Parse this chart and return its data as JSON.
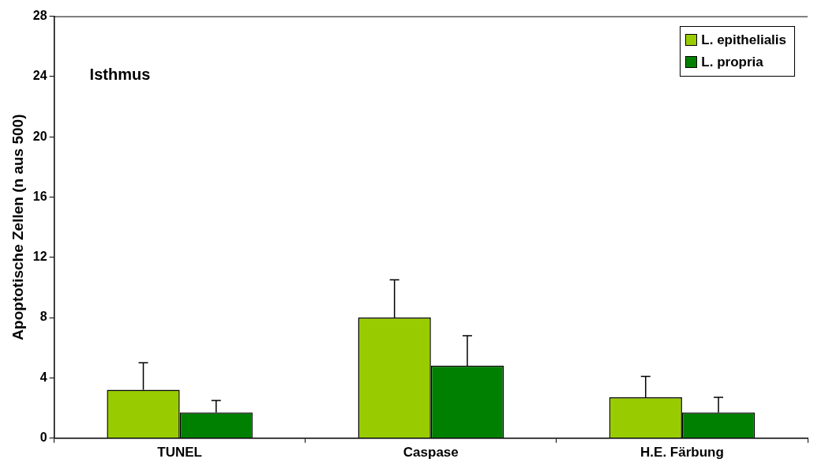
{
  "chart_data": {
    "type": "bar",
    "ylabel": "Apoptotische Zellen (n aus 500)",
    "annotations": [
      "Isthmus"
    ],
    "categories": [
      "TUNEL",
      "Caspase",
      "H.E. Färbung"
    ],
    "series": [
      {
        "name": "L. epithelialis",
        "color": "#99cc00",
        "values": [
          3.2,
          8.0,
          2.7
        ],
        "errors": [
          [
            3.2,
            5.0
          ],
          [
            8.0,
            10.5
          ],
          [
            2.7,
            4.1
          ]
        ]
      },
      {
        "name": "L. propria",
        "color": "#008000",
        "values": [
          1.7,
          4.8,
          1.7
        ],
        "errors": [
          [
            1.7,
            2.5
          ],
          [
            4.8,
            6.8
          ],
          [
            1.7,
            2.7
          ]
        ]
      }
    ],
    "ylim": [
      0,
      28
    ],
    "yticks": [
      0,
      4,
      8,
      12,
      16,
      20,
      24,
      28
    ],
    "grid": false,
    "legend": "top right"
  }
}
